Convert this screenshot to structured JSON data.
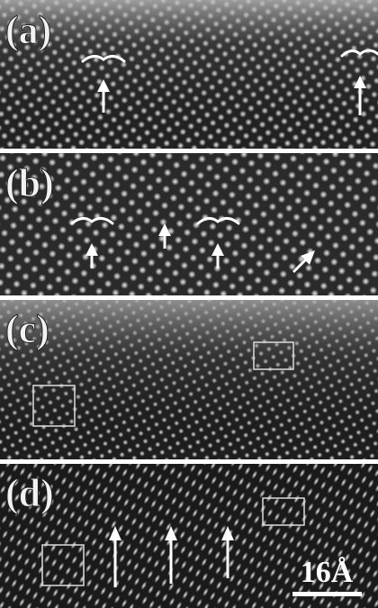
{
  "panels": [
    {
      "label": "(a)"
    },
    {
      "label": "(b)"
    },
    {
      "label": "(c)"
    },
    {
      "label": "(d)"
    }
  ],
  "scale_bar": {
    "label": "16Å"
  }
}
